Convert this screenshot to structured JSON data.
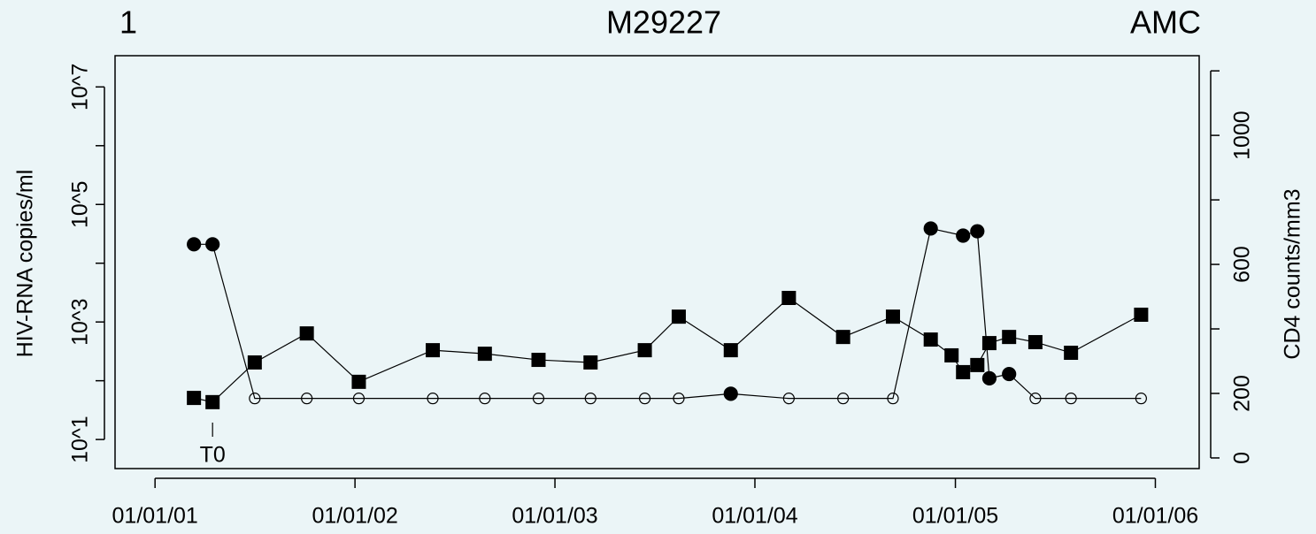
{
  "chart_data": {
    "type": "line",
    "title_left": "1",
    "title": "M29227",
    "title_right": "AMC",
    "ylabel": "HIV-RNA copies/ml",
    "y2label": "CD4 counts/mm3",
    "annotation": "T0",
    "annotation_x": "2001-04-16",
    "y_log": true,
    "xlim": [
      "2000-10-20",
      "2006-03-22"
    ],
    "xticks": [
      {
        "value": "2001-01-01",
        "label": "01/01/01"
      },
      {
        "value": "2002-01-01",
        "label": "01/01/02"
      },
      {
        "value": "2003-01-01",
        "label": "01/01/03"
      },
      {
        "value": "2004-01-01",
        "label": "01/01/04"
      },
      {
        "value": "2005-01-01",
        "label": "01/01/05"
      },
      {
        "value": "2006-01-01",
        "label": "01/01/06"
      }
    ],
    "ylim": [
      3.2,
      34000000
    ],
    "yticks": [
      {
        "value": 10,
        "label": "10^1"
      },
      {
        "value": 1000,
        "label": "10^3"
      },
      {
        "value": 100000,
        "label": "10^5"
      },
      {
        "value": 10000000,
        "label": "10^7"
      }
    ],
    "yminorticks": [
      100,
      10000,
      1000000
    ],
    "y2lim": [
      -33,
      1247
    ],
    "y2ticks": [
      0,
      200,
      600,
      1000
    ],
    "y2minorticks": [
      400,
      800,
      1200
    ],
    "color": "#000000",
    "series": [
      {
        "marker": "circle",
        "x": [
          "2001-03-13",
          "2001-04-16",
          "2001-07-02",
          "2001-10-05",
          "2002-01-08",
          "2002-05-23",
          "2002-08-26",
          "2002-12-02",
          "2003-03-07",
          "2003-06-14",
          "2003-08-15",
          "2003-11-18",
          "2004-03-03",
          "2004-06-10",
          "2004-09-09",
          "2004-11-17",
          "2005-01-15",
          "2005-02-10",
          "2005-03-04",
          "2005-04-09",
          "2005-05-27",
          "2005-07-31",
          "2005-12-06"
        ],
        "values": [
          21000,
          21000,
          50,
          50,
          50,
          50,
          50,
          50,
          50,
          50,
          50,
          60,
          50,
          50,
          50,
          39000,
          29500,
          35000,
          110,
          130,
          50,
          50,
          50
        ],
        "filled": [
          true,
          true,
          false,
          false,
          false,
          false,
          false,
          false,
          false,
          false,
          false,
          true,
          false,
          false,
          false,
          true,
          true,
          true,
          true,
          true,
          false,
          false,
          false
        ]
      },
      {
        "marker": "square",
        "axis": "y2",
        "x": [
          "2001-03-13",
          "2001-04-16",
          "2001-07-02",
          "2001-10-05",
          "2002-01-08",
          "2002-05-23",
          "2002-08-26",
          "2002-12-02",
          "2003-03-07",
          "2003-06-14",
          "2003-08-15",
          "2003-11-18",
          "2004-03-03",
          "2004-06-10",
          "2004-09-09",
          "2004-11-17",
          "2004-12-25",
          "2005-01-15",
          "2005-02-10",
          "2005-03-04",
          "2005-04-09",
          "2005-05-27",
          "2005-07-31",
          "2005-12-06"
        ],
        "values": [
          186,
          173,
          296,
          386,
          236,
          334,
          323,
          304,
          296,
          334,
          438,
          334,
          496,
          375,
          438,
          367,
          318,
          266,
          288,
          356,
          375,
          359,
          326,
          444
        ]
      }
    ]
  }
}
